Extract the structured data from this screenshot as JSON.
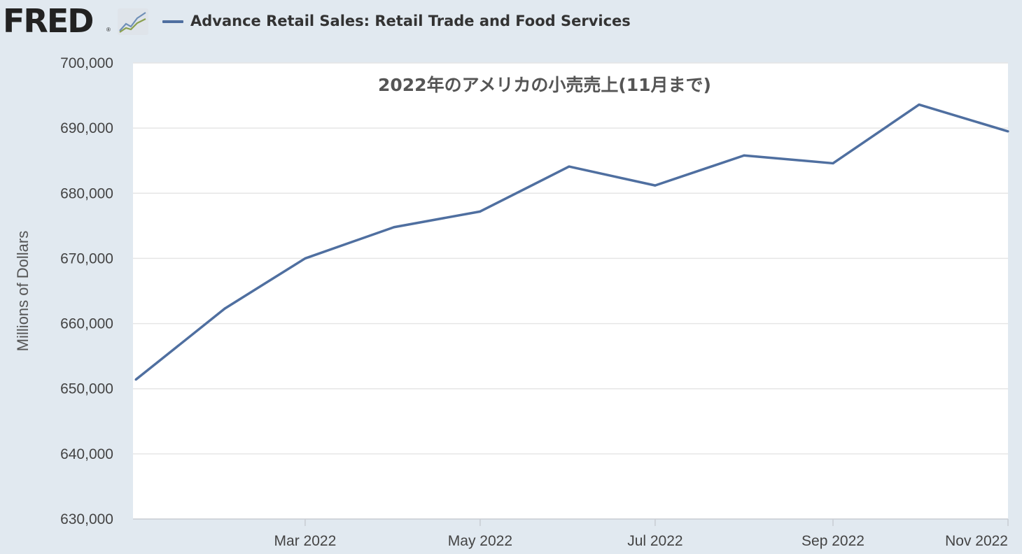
{
  "header": {
    "logo_text": "FRED",
    "logo_reg": "®",
    "series_label": "Advance Retail Sales: Retail Trade and Food Services"
  },
  "colors": {
    "background": "#e1e9f0",
    "plot_background": "#ffffff",
    "series_line": "#4f6fa0",
    "gridline": "#e6e6e6",
    "axis_text": "#444444"
  },
  "icons": [
    "fred-graph-icon"
  ],
  "chart_data": {
    "type": "line",
    "title": "2022年のアメリカの小売売上(11月まで)",
    "xlabel": "",
    "ylabel": "Millions of Dollars",
    "ylim": [
      630000,
      700000
    ],
    "y_ticks": [
      630000,
      640000,
      650000,
      660000,
      670000,
      680000,
      690000,
      700000
    ],
    "y_tick_labels": [
      "630,000",
      "640,000",
      "650,000",
      "660,000",
      "670,000",
      "680,000",
      "690,000",
      "700,000"
    ],
    "x": [
      "2022-01",
      "2022-02",
      "2022-03",
      "2022-04",
      "2022-05",
      "2022-06",
      "2022-07",
      "2022-08",
      "2022-09",
      "2022-10",
      "2022-11"
    ],
    "x_tick_labels": [
      {
        "x": "2022-03",
        "label": "Mar 2022"
      },
      {
        "x": "2022-05",
        "label": "May 2022"
      },
      {
        "x": "2022-07",
        "label": "Jul 2022"
      },
      {
        "x": "2022-09",
        "label": "Sep 2022"
      },
      {
        "x": "2022-11",
        "label": "Nov 2022"
      }
    ],
    "grid": true,
    "series": [
      {
        "name": "Advance Retail Sales: Retail Trade and Food Services",
        "values": [
          651400,
          662300,
          670000,
          674800,
          677200,
          684100,
          681200,
          685800,
          684600,
          693600,
          689500
        ]
      }
    ]
  }
}
